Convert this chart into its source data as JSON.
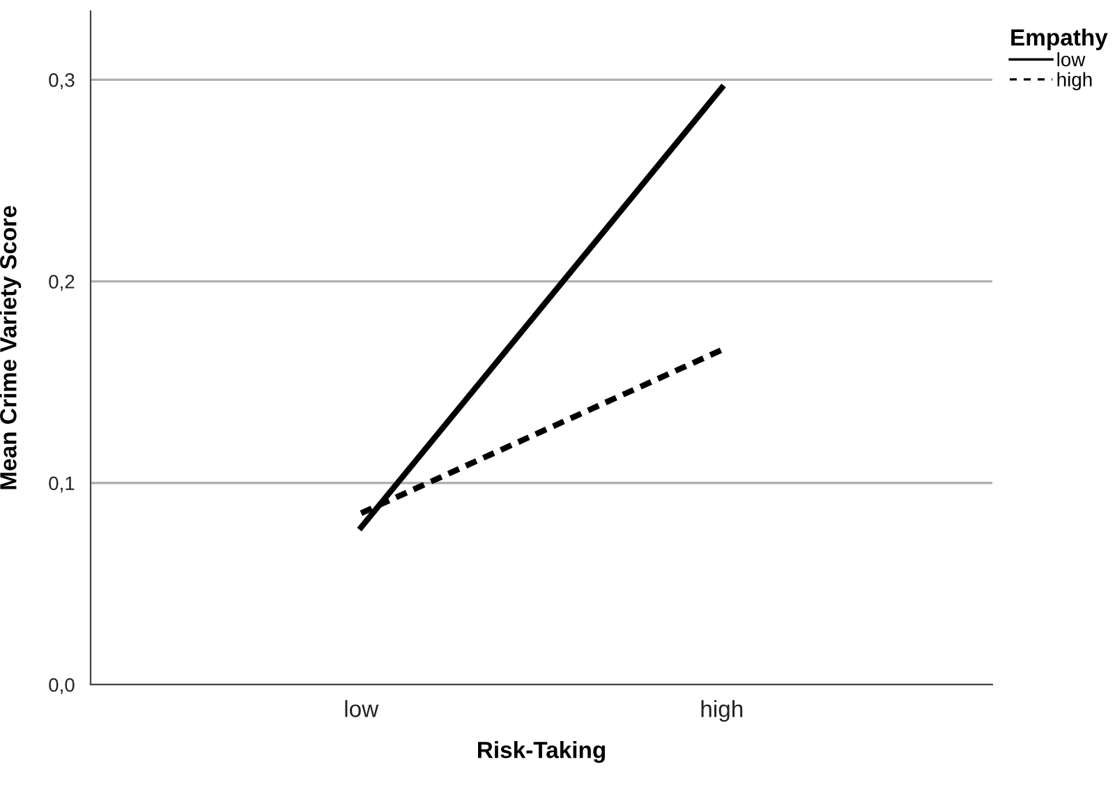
{
  "chart_data": {
    "type": "line",
    "xlabel": "Risk-Taking",
    "ylabel": "Mean Crime Variety Score",
    "legend_title": "Empathy",
    "categories": [
      "low",
      "high"
    ],
    "series": [
      {
        "name": "low",
        "color": "#000000",
        "line_style": "solid",
        "values": [
          0.078,
          0.296
        ]
      },
      {
        "name": "high",
        "color": "#000000",
        "line_style": "dashed",
        "values": [
          0.085,
          0.166
        ]
      }
    ],
    "ylim": [
      0,
      0.334
    ],
    "yticks": [
      {
        "value": 0,
        "label": "0,0"
      },
      {
        "value": 0.1,
        "label": "0,1"
      },
      {
        "value": 0.2,
        "label": "0,2"
      },
      {
        "value": 0.3,
        "label": "0,3"
      }
    ],
    "grid": "y",
    "legend": "top right",
    "marker": "none"
  }
}
